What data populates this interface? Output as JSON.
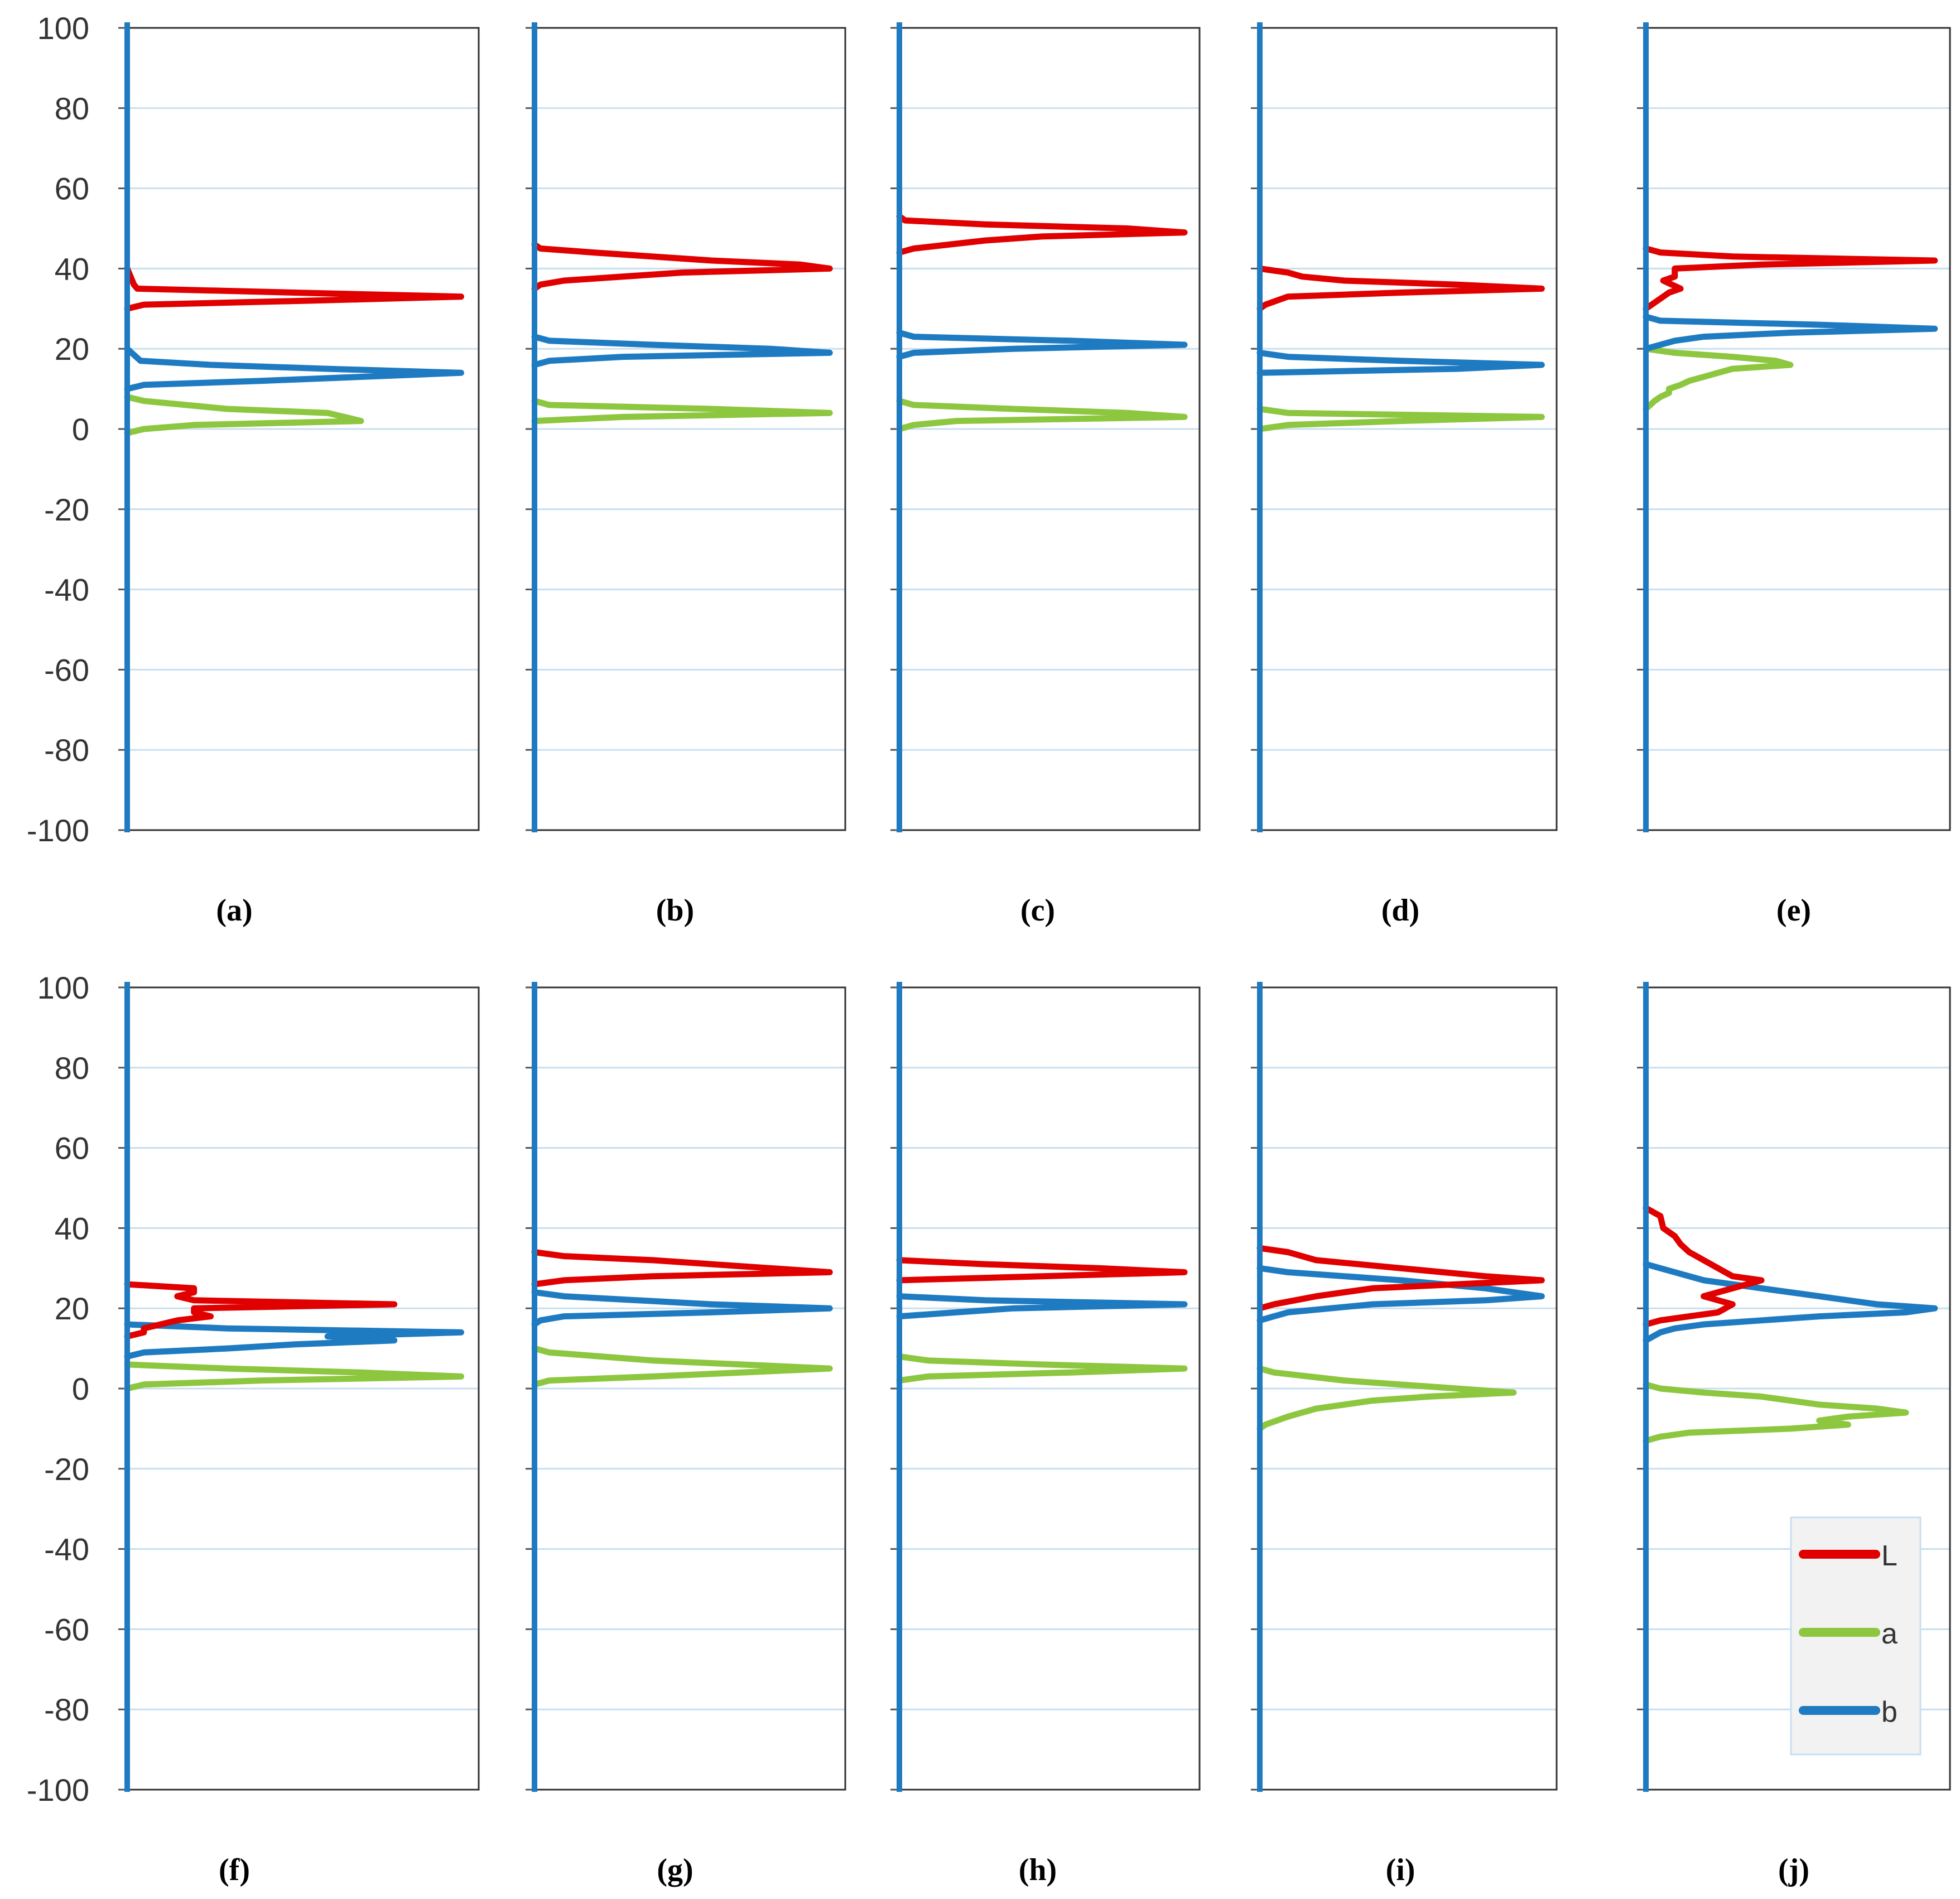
{
  "chart_data": {
    "type": "line",
    "description_axis": "frequency (x) vs value (y)",
    "ylim": [
      -100,
      100
    ],
    "yticks": [
      "100",
      "80",
      "60",
      "40",
      "20",
      "0",
      "-20",
      "-40",
      "-60",
      "-80",
      "-100"
    ],
    "legend": {
      "placement": "inside-bottom-right of panel (j)",
      "entries": [
        {
          "label": "L",
          "color": "#e00000"
        },
        {
          "label": "a",
          "color": "#8dc63f"
        },
        {
          "label": "b",
          "color": "#1f7bc1"
        }
      ]
    },
    "series_colors": {
      "L": "#e00000",
      "a": "#8dc63f",
      "b": "#1f7bc1"
    },
    "panels": [
      {
        "label": "(a)",
        "L": [
          [
            40,
            0.0
          ],
          [
            38,
            0.01
          ],
          [
            36,
            0.02
          ],
          [
            35,
            0.03
          ],
          [
            34,
            0.5
          ],
          [
            33,
            1.0
          ],
          [
            32,
            0.55
          ],
          [
            31,
            0.05
          ],
          [
            30,
            0.0
          ]
        ],
        "b": [
          [
            20,
            0.0
          ],
          [
            17,
            0.04
          ],
          [
            16,
            0.25
          ],
          [
            15,
            0.6
          ],
          [
            14,
            1.0
          ],
          [
            13,
            0.7
          ],
          [
            12,
            0.4
          ],
          [
            11,
            0.05
          ],
          [
            10,
            0.0
          ]
        ],
        "a": [
          [
            8,
            0.0
          ],
          [
            7,
            0.05
          ],
          [
            5,
            0.3
          ],
          [
            4,
            0.6
          ],
          [
            3,
            0.65
          ],
          [
            2,
            0.7
          ],
          [
            1,
            0.2
          ],
          [
            0,
            0.05
          ],
          [
            -1,
            0.0
          ]
        ]
      },
      {
        "label": "(b)",
        "L": [
          [
            46,
            0.0
          ],
          [
            45,
            0.02
          ],
          [
            44,
            0.2
          ],
          [
            42,
            0.6
          ],
          [
            41,
            0.9
          ],
          [
            40,
            1.0
          ],
          [
            39,
            0.5
          ],
          [
            37,
            0.1
          ],
          [
            36,
            0.02
          ],
          [
            35,
            0.0
          ]
        ],
        "b": [
          [
            23,
            0.0
          ],
          [
            22,
            0.05
          ],
          [
            21,
            0.4
          ],
          [
            20,
            0.8
          ],
          [
            19,
            1.0
          ],
          [
            18,
            0.3
          ],
          [
            17,
            0.05
          ],
          [
            16,
            0.0
          ]
        ],
        "a": [
          [
            7,
            0.0
          ],
          [
            6,
            0.05
          ],
          [
            5,
            0.6
          ],
          [
            4,
            1.0
          ],
          [
            3,
            0.3
          ],
          [
            2,
            0.0
          ]
        ]
      },
      {
        "label": "(c)",
        "L": [
          [
            53,
            0.0
          ],
          [
            52,
            0.02
          ],
          [
            51,
            0.3
          ],
          [
            50,
            0.8
          ],
          [
            49,
            1.0
          ],
          [
            48,
            0.5
          ],
          [
            47,
            0.3
          ],
          [
            45,
            0.05
          ],
          [
            44,
            0.0
          ]
        ],
        "b": [
          [
            24,
            0.0
          ],
          [
            23,
            0.05
          ],
          [
            22,
            0.6
          ],
          [
            21,
            1.0
          ],
          [
            20,
            0.4
          ],
          [
            19,
            0.05
          ],
          [
            18,
            0.0
          ]
        ],
        "a": [
          [
            7,
            0.0
          ],
          [
            6,
            0.05
          ],
          [
            5,
            0.4
          ],
          [
            4,
            0.8
          ],
          [
            3,
            1.0
          ],
          [
            2,
            0.2
          ],
          [
            1,
            0.05
          ],
          [
            0,
            0.0
          ]
        ]
      },
      {
        "label": "(d)",
        "L": [
          [
            40,
            0.0
          ],
          [
            39,
            0.1
          ],
          [
            38,
            0.15
          ],
          [
            37,
            0.3
          ],
          [
            36,
            0.7
          ],
          [
            35,
            1.0
          ],
          [
            34,
            0.5
          ],
          [
            33,
            0.1
          ],
          [
            31,
            0.02
          ],
          [
            30,
            0.0
          ]
        ],
        "b": [
          [
            19,
            0.0
          ],
          [
            18,
            0.1
          ],
          [
            17,
            0.5
          ],
          [
            16,
            1.0
          ],
          [
            15,
            0.7
          ],
          [
            14,
            0.0
          ]
        ],
        "a": [
          [
            5,
            0.0
          ],
          [
            4,
            0.1
          ],
          [
            3,
            1.0
          ],
          [
            2,
            0.5
          ],
          [
            1,
            0.1
          ],
          [
            0,
            0.0
          ]
        ]
      },
      {
        "label": "(e)",
        "L": [
          [
            45,
            0.0
          ],
          [
            44,
            0.05
          ],
          [
            43,
            0.3
          ],
          [
            42,
            1.0
          ],
          [
            41,
            0.4
          ],
          [
            40,
            0.1
          ],
          [
            38,
            0.1
          ],
          [
            37,
            0.06
          ],
          [
            35,
            0.12
          ],
          [
            34,
            0.08
          ],
          [
            33,
            0.06
          ],
          [
            31,
            0.02
          ],
          [
            30,
            0.0
          ]
        ],
        "b": [
          [
            28,
            0.0
          ],
          [
            27,
            0.05
          ],
          [
            26,
            0.6
          ],
          [
            25,
            1.0
          ],
          [
            24,
            0.5
          ],
          [
            23,
            0.2
          ],
          [
            22,
            0.1
          ],
          [
            21,
            0.05
          ],
          [
            20,
            0.0
          ]
        ],
        "a": [
          [
            20,
            0.0
          ],
          [
            19,
            0.1
          ],
          [
            18,
            0.3
          ],
          [
            17,
            0.45
          ],
          [
            16,
            0.5
          ],
          [
            15,
            0.3
          ],
          [
            13,
            0.2
          ],
          [
            12,
            0.15
          ],
          [
            11,
            0.12
          ],
          [
            10,
            0.08
          ],
          [
            9,
            0.08
          ],
          [
            8,
            0.05
          ],
          [
            7,
            0.03
          ],
          [
            5,
            0.0
          ]
        ]
      },
      {
        "label": "(f)",
        "L": [
          [
            26,
            0.0
          ],
          [
            25,
            0.2
          ],
          [
            24,
            0.2
          ],
          [
            23,
            0.15
          ],
          [
            22,
            0.2
          ],
          [
            21,
            0.8
          ],
          [
            20,
            0.2
          ],
          [
            19,
            0.2
          ],
          [
            18,
            0.25
          ],
          [
            17,
            0.15
          ],
          [
            16,
            0.1
          ],
          [
            15,
            0.05
          ],
          [
            14,
            0.05
          ],
          [
            13,
            0.0
          ]
        ],
        "b": [
          [
            16,
            0.0
          ],
          [
            15,
            0.3
          ],
          [
            14,
            1.0
          ],
          [
            13,
            0.6
          ],
          [
            12,
            0.8
          ],
          [
            11,
            0.5
          ],
          [
            10,
            0.3
          ],
          [
            9,
            0.05
          ],
          [
            8,
            0.0
          ]
        ],
        "a": [
          [
            6,
            0.0
          ],
          [
            5,
            0.3
          ],
          [
            4,
            0.7
          ],
          [
            3,
            1.0
          ],
          [
            2,
            0.4
          ],
          [
            1,
            0.05
          ],
          [
            0,
            0.0
          ]
        ]
      },
      {
        "label": "(g)",
        "L": [
          [
            34,
            0.0
          ],
          [
            33,
            0.1
          ],
          [
            32,
            0.4
          ],
          [
            30,
            0.8
          ],
          [
            29,
            1.0
          ],
          [
            28,
            0.4
          ],
          [
            27,
            0.1
          ],
          [
            26,
            0.0
          ]
        ],
        "b": [
          [
            24,
            0.0
          ],
          [
            23,
            0.1
          ],
          [
            21,
            0.6
          ],
          [
            20,
            1.0
          ],
          [
            19,
            0.6
          ],
          [
            18,
            0.1
          ],
          [
            17,
            0.02
          ],
          [
            16,
            0.0
          ]
        ],
        "a": [
          [
            10,
            0.0
          ],
          [
            9,
            0.05
          ],
          [
            7,
            0.4
          ],
          [
            6,
            0.7
          ],
          [
            5,
            1.0
          ],
          [
            3,
            0.4
          ],
          [
            2,
            0.05
          ],
          [
            1,
            0.0
          ]
        ]
      },
      {
        "label": "(h)",
        "L": [
          [
            32,
            0.0
          ],
          [
            31,
            0.3
          ],
          [
            30,
            0.7
          ],
          [
            29,
            1.0
          ],
          [
            28,
            0.5
          ],
          [
            27,
            0.0
          ]
        ],
        "b": [
          [
            23,
            0.0
          ],
          [
            22,
            0.3
          ],
          [
            21,
            1.0
          ],
          [
            20,
            0.4
          ],
          [
            19,
            0.2
          ],
          [
            18,
            0.0
          ]
        ],
        "a": [
          [
            8,
            0.0
          ],
          [
            7,
            0.1
          ],
          [
            6,
            0.5
          ],
          [
            5,
            1.0
          ],
          [
            4,
            0.6
          ],
          [
            3,
            0.1
          ],
          [
            2,
            0.0
          ]
        ]
      },
      {
        "label": "(i)",
        "L": [
          [
            35,
            0.0
          ],
          [
            34,
            0.1
          ],
          [
            32,
            0.2
          ],
          [
            30,
            0.5
          ],
          [
            28,
            0.8
          ],
          [
            27,
            1.0
          ],
          [
            26,
            0.7
          ],
          [
            25,
            0.4
          ],
          [
            23,
            0.2
          ],
          [
            21,
            0.05
          ],
          [
            20,
            0.0
          ]
        ],
        "b": [
          [
            30,
            0.0
          ],
          [
            29,
            0.1
          ],
          [
            27,
            0.5
          ],
          [
            25,
            0.8
          ],
          [
            24,
            0.9
          ],
          [
            23,
            1.0
          ],
          [
            22,
            0.8
          ],
          [
            21,
            0.4
          ],
          [
            19,
            0.1
          ],
          [
            18,
            0.05
          ],
          [
            17,
            0.0
          ]
        ],
        "a": [
          [
            5,
            0.0
          ],
          [
            4,
            0.05
          ],
          [
            2,
            0.3
          ],
          [
            0,
            0.7
          ],
          [
            -1,
            0.9
          ],
          [
            -2,
            0.6
          ],
          [
            -3,
            0.4
          ],
          [
            -5,
            0.2
          ],
          [
            -7,
            0.1
          ],
          [
            -9,
            0.02
          ],
          [
            -10,
            0.0
          ]
        ]
      },
      {
        "label": "(j)",
        "L": [
          [
            45,
            0.0
          ],
          [
            43,
            0.05
          ],
          [
            40,
            0.06
          ],
          [
            38,
            0.1
          ],
          [
            36,
            0.12
          ],
          [
            34,
            0.15
          ],
          [
            32,
            0.2
          ],
          [
            30,
            0.25
          ],
          [
            28,
            0.3
          ],
          [
            27,
            0.4
          ],
          [
            25,
            0.3
          ],
          [
            23,
            0.2
          ],
          [
            21,
            0.3
          ],
          [
            19,
            0.25
          ],
          [
            18,
            0.15
          ],
          [
            17,
            0.05
          ],
          [
            16,
            0.0
          ]
        ],
        "b": [
          [
            31,
            0.0
          ],
          [
            30,
            0.05
          ],
          [
            29,
            0.1
          ],
          [
            27,
            0.2
          ],
          [
            25,
            0.4
          ],
          [
            23,
            0.6
          ],
          [
            22,
            0.7
          ],
          [
            21,
            0.8
          ],
          [
            20,
            1.0
          ],
          [
            19,
            0.9
          ],
          [
            18,
            0.6
          ],
          [
            17,
            0.4
          ],
          [
            16,
            0.2
          ],
          [
            15,
            0.1
          ],
          [
            14,
            0.05
          ],
          [
            12,
            0.0
          ]
        ],
        "a": [
          [
            1,
            0.0
          ],
          [
            0,
            0.05
          ],
          [
            -1,
            0.2
          ],
          [
            -2,
            0.4
          ],
          [
            -3,
            0.5
          ],
          [
            -4,
            0.6
          ],
          [
            -5,
            0.8
          ],
          [
            -6,
            0.9
          ],
          [
            -7,
            0.7
          ],
          [
            -8,
            0.6
          ],
          [
            -9,
            0.7
          ],
          [
            -10,
            0.5
          ],
          [
            -11,
            0.15
          ],
          [
            -12,
            0.05
          ],
          [
            -13,
            0.0
          ]
        ]
      }
    ]
  }
}
